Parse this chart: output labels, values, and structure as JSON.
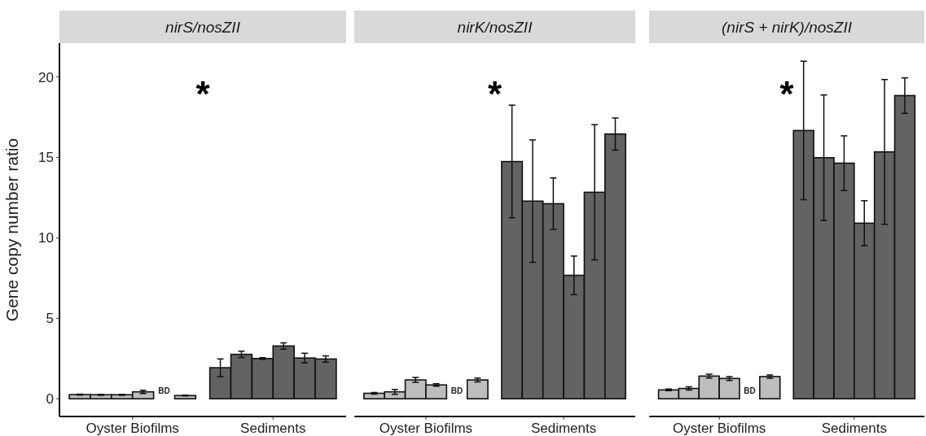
{
  "chart_data": [
    {
      "type": "bar",
      "title": "nirS/nosZII",
      "ylabel": "Gene copy number ratio",
      "categories": [
        "Oyster Biofilms",
        "Sediments"
      ],
      "ylim": [
        -1.1,
        22.1
      ],
      "yticks": [
        0,
        5,
        10,
        15,
        20
      ],
      "series": [
        {
          "colors": [
            "#bdbdbd",
            "#636363"
          ],
          "values": [
            0.26,
            1.93
          ],
          "errors": [
            0.03,
            0.55
          ]
        },
        {
          "colors": [
            "#bdbdbd",
            "#636363"
          ],
          "values": [
            0.25,
            2.76
          ],
          "errors": [
            0.03,
            0.2
          ]
        },
        {
          "colors": [
            "#bdbdbd",
            "#636363"
          ],
          "values": [
            0.25,
            2.5
          ],
          "errors": [
            0.03,
            0.05
          ]
        },
        {
          "colors": [
            "#bdbdbd",
            "#636363"
          ],
          "values": [
            0.43,
            3.28
          ],
          "errors": [
            0.1,
            0.2
          ]
        },
        {
          "colors": [
            null,
            "#636363"
          ],
          "values": [
            null,
            2.53
          ],
          "errors": [
            null,
            0.3
          ]
        },
        {
          "colors": [
            "#bdbdbd",
            "#636363"
          ],
          "values": [
            0.2,
            2.47
          ],
          "errors": [
            0.03,
            0.2
          ]
        }
      ],
      "annotations": [
        "*",
        "BD"
      ]
    },
    {
      "type": "bar",
      "title": "nirK/nosZII",
      "categories": [
        "Oyster Biofilms",
        "Sediments"
      ],
      "ylim": [
        -1.1,
        22.1
      ],
      "tick_labels": "x",
      "series": [
        {
          "colors": [
            "#bdbdbd",
            "#636363"
          ],
          "values": [
            0.34,
            14.74
          ],
          "errors": [
            0.05,
            3.5
          ]
        },
        {
          "colors": [
            "#bdbdbd",
            "#636363"
          ],
          "values": [
            0.43,
            12.28
          ],
          "errors": [
            0.15,
            3.8
          ]
        },
        {
          "colors": [
            "#bdbdbd",
            "#636363"
          ],
          "values": [
            1.17,
            12.12
          ],
          "errors": [
            0.15,
            1.6
          ]
        },
        {
          "colors": [
            "#bdbdbd",
            "#636363"
          ],
          "values": [
            0.86,
            7.67
          ],
          "errors": [
            0.08,
            1.2
          ]
        },
        {
          "colors": [
            null,
            "#636363"
          ],
          "values": [
            null,
            12.83
          ],
          "errors": [
            null,
            4.2
          ]
        },
        {
          "colors": [
            "#bdbdbd",
            "#636363"
          ],
          "values": [
            1.17,
            16.45
          ],
          "errors": [
            0.12,
            1.0
          ]
        }
      ],
      "annotations": [
        "*",
        "BD"
      ]
    },
    {
      "type": "bar",
      "title": "(nirS + nirK)/nosZII",
      "categories": [
        "Oyster Biofilms",
        "Sediments"
      ],
      "ylim": [
        -1.1,
        22.1
      ],
      "tick_labels": "x",
      "series": [
        {
          "colors": [
            "#bdbdbd",
            "#636363"
          ],
          "values": [
            0.55,
            16.67
          ],
          "errors": [
            0.05,
            4.3
          ]
        },
        {
          "colors": [
            "#bdbdbd",
            "#636363"
          ],
          "values": [
            0.64,
            14.98
          ],
          "errors": [
            0.1,
            3.9
          ]
        },
        {
          "colors": [
            "#bdbdbd",
            "#636363"
          ],
          "values": [
            1.41,
            14.64
          ],
          "errors": [
            0.12,
            1.7
          ]
        },
        {
          "colors": [
            "#bdbdbd",
            "#636363"
          ],
          "values": [
            1.26,
            10.91
          ],
          "errors": [
            0.12,
            1.4
          ]
        },
        {
          "colors": [
            null,
            "#636363"
          ],
          "values": [
            null,
            15.34
          ],
          "errors": [
            null,
            4.5
          ]
        },
        {
          "colors": [
            "#bdbdbd",
            "#636363"
          ],
          "values": [
            1.38,
            18.84
          ],
          "errors": [
            0.1,
            1.1
          ]
        }
      ],
      "annotations": [
        "*",
        "BD"
      ]
    }
  ]
}
